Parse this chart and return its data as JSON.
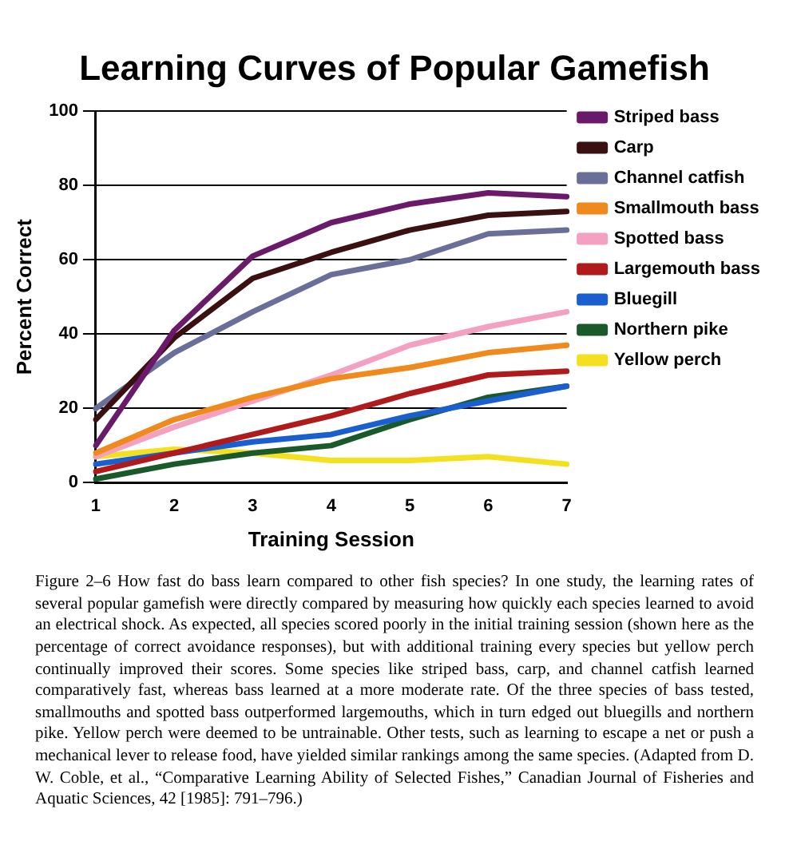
{
  "chart_data": {
    "type": "line",
    "title": "Learning Curves of Popular Gamefish",
    "xlabel": "Training Session",
    "ylabel": "Percent Correct",
    "categories": [
      "1",
      "2",
      "3",
      "4",
      "5",
      "6",
      "7"
    ],
    "ylim": [
      0,
      100
    ],
    "yticks": [
      0,
      20,
      40,
      60,
      80,
      100
    ],
    "grid": "y",
    "legend": "right",
    "marker": "none",
    "line_style": "solid",
    "series": [
      {
        "name": "Striped bass",
        "color": "#6b1a6b",
        "values": [
          10,
          41,
          61,
          70,
          75,
          78,
          77
        ]
      },
      {
        "name": "Carp",
        "color": "#3a1010",
        "values": [
          17,
          39,
          55,
          62,
          68,
          72,
          73
        ]
      },
      {
        "name": "Channel catfish",
        "color": "#6a6f99",
        "values": [
          20,
          35,
          46,
          56,
          60,
          67,
          68
        ]
      },
      {
        "name": "Smallmouth bass",
        "color": "#f08a1c",
        "values": [
          8,
          17,
          23,
          28,
          31,
          35,
          37
        ]
      },
      {
        "name": "Spotted bass",
        "color": "#f4a0c0",
        "values": [
          7,
          15,
          22,
          29,
          37,
          42,
          46
        ]
      },
      {
        "name": "Largemouth bass",
        "color": "#b01a1a",
        "values": [
          3,
          8,
          13,
          18,
          24,
          29,
          30
        ]
      },
      {
        "name": "Bluegill",
        "color": "#1a5fd0",
        "values": [
          5,
          8,
          11,
          13,
          18,
          22,
          26
        ]
      },
      {
        "name": "Northern pike",
        "color": "#1a5a2a",
        "values": [
          1,
          5,
          8,
          10,
          17,
          23,
          26
        ]
      },
      {
        "name": "Yellow perch",
        "color": "#f5e020",
        "values": [
          7,
          9,
          8,
          6,
          6,
          7,
          5
        ]
      }
    ],
    "annotations": [
      "Figure 2–6 How fast do bass learn compared to other fish species? In one study, the learning rates of several popular gamefish were directly compared by measuring how quickly each species learned to avoid an electrical shock. As expected, all species scored poorly in the initial training session (shown here as the percentage of correct avoidance responses), but with additional training every species but yellow perch continually improved their scores. Some species like striped bass, carp, and channel catfish learned comparatively fast, whereas bass learned at a more moderate rate. Of the three species of bass tested, smallmouths and spotted bass outperformed largemouths, which in turn edged out bluegills and northern pike. Yellow perch were deemed to be untrainable. Other tests, such as learning to escape a net or push a mechanical lever to release food, have yielded similar rankings among the same species. (Adapted from D. W. Coble, et al., “Comparative Learning Ability of Selected Fishes,” Canadian Journal of Fisheries and Aquatic Sciences, 42 [1985]: 791–796.)"
    ]
  }
}
